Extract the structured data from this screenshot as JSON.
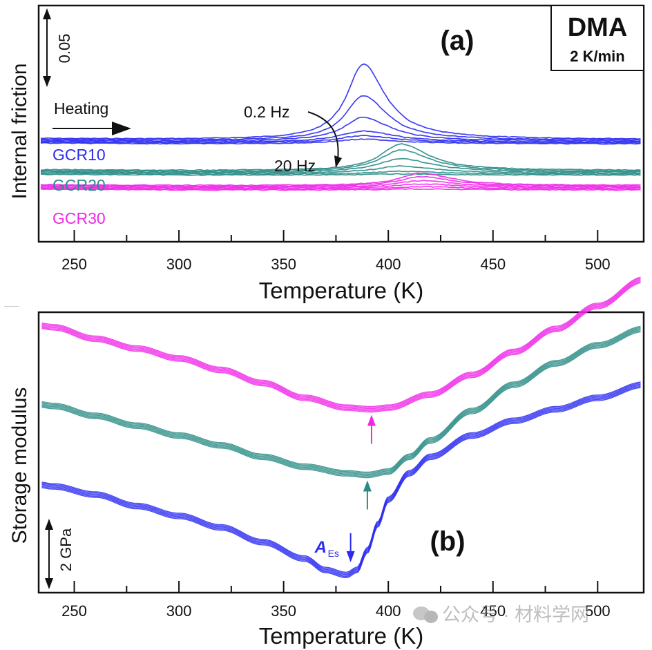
{
  "chart_data": [
    {
      "panel": "a",
      "type": "line",
      "panel_label": "(a)",
      "title_box": {
        "line1": "DMA",
        "line2": "2 K/min"
      },
      "xlabel": "Temperature (K)",
      "ylabel": "Internal friction",
      "xlim": [
        233,
        522
      ],
      "xticks": [
        250,
        300,
        350,
        400,
        450,
        500
      ],
      "xtick_labels": [
        "250",
        "300",
        "350",
        "400",
        "450",
        "500"
      ],
      "y_units": "arbitrary (offset)",
      "scale_bar": {
        "label": "0.05",
        "value": 0.05
      },
      "annotations": {
        "heating": "Heating",
        "freq_high_label": "0.2 Hz",
        "freq_low_label": "20 Hz"
      },
      "frequencies_note": "curves go from 0.2 Hz (largest peak) to 20 Hz (smallest peak)",
      "groups": [
        {
          "name": "GCR10",
          "color": "#2b2bf0",
          "baseline": 0.0,
          "peak_T": 388,
          "peak_heights": [
            0.058,
            0.0345,
            0.0183,
            0.0085,
            0.0055,
            0.0035
          ],
          "widths": [
            14,
            15,
            17,
            20,
            22,
            24
          ]
        },
        {
          "name": "GCR20",
          "color": "#2a8c86",
          "baseline": -0.024,
          "peak_T": 406,
          "peak_heights": [
            0.0205,
            0.0165,
            0.0105,
            0.0055,
            0.0022,
            0.0008
          ],
          "widths": [
            17,
            18,
            20,
            22,
            24,
            26
          ]
        },
        {
          "name": "GCR30",
          "color": "#f028e8",
          "baseline": -0.0355,
          "peak_T": 416,
          "peak_heights": [
            0.0095,
            0.0075,
            0.005,
            0.0032,
            0.0018,
            0.0008
          ],
          "widths": [
            18,
            20,
            22,
            24,
            26,
            28
          ]
        }
      ]
    },
    {
      "panel": "b",
      "type": "line",
      "panel_label": "(b)",
      "xlabel": "Temperature (K)",
      "ylabel": "Storage modulus",
      "xlim": [
        233,
        522
      ],
      "xticks": [
        250,
        300,
        350,
        400,
        450,
        500
      ],
      "xtick_labels": [
        "250",
        "300",
        "350",
        "400",
        "450",
        "500"
      ],
      "y_units": "GPa (offset)",
      "scale_bar": {
        "label": "2 GPa",
        "value": 2
      },
      "groups": [
        {
          "name": "GCR30",
          "color": "#f028e8",
          "arrow_T": 392,
          "arrow_direction": "up",
          "curve": {
            "T": [
              233,
              240,
              260,
              280,
              300,
              320,
              340,
              360,
              380,
              392,
              400,
              420,
              440,
              460,
              480,
              500,
              522
            ],
            "E": [
              9.55,
              9.5,
              9.15,
              8.85,
              8.55,
              8.2,
              7.8,
              7.35,
              7.05,
              7.0,
              7.05,
              7.45,
              8.05,
              8.75,
              9.45,
              10.15,
              10.95
            ]
          }
        },
        {
          "name": "GCR20",
          "color": "#2a8c86",
          "arrow_T": 390,
          "arrow_direction": "up",
          "curve": {
            "T": [
              233,
              240,
              260,
              280,
              300,
              320,
              340,
              360,
              380,
              390,
              400,
              410,
              420,
              440,
              460,
              480,
              500,
              522
            ],
            "E": [
              7.15,
              7.1,
              6.8,
              6.5,
              6.2,
              5.9,
              5.55,
              5.25,
              5.05,
              5.0,
              5.1,
              5.55,
              6.05,
              6.95,
              7.75,
              8.4,
              8.95,
              9.45
            ]
          }
        },
        {
          "name": "GCR10",
          "color": "#2b2bf0",
          "arrow_T": 382,
          "arrow_direction": "down",
          "arrow_label": "A",
          "arrow_label_sub": "Es",
          "curve": {
            "T": [
              233,
              240,
              260,
              280,
              300,
              320,
              340,
              360,
              370,
              380,
              385,
              390,
              395,
              400,
              410,
              420,
              440,
              460,
              480,
              500,
              522
            ],
            "E": [
              4.7,
              4.65,
              4.4,
              4.05,
              3.75,
              3.4,
              2.95,
              2.45,
              2.1,
              1.95,
              2.1,
              2.7,
              3.5,
              4.25,
              5.05,
              5.55,
              6.2,
              6.65,
              7.0,
              7.35,
              7.75
            ]
          }
        }
      ]
    }
  ],
  "watermark": {
    "text": "公众号 · 材料学网"
  }
}
